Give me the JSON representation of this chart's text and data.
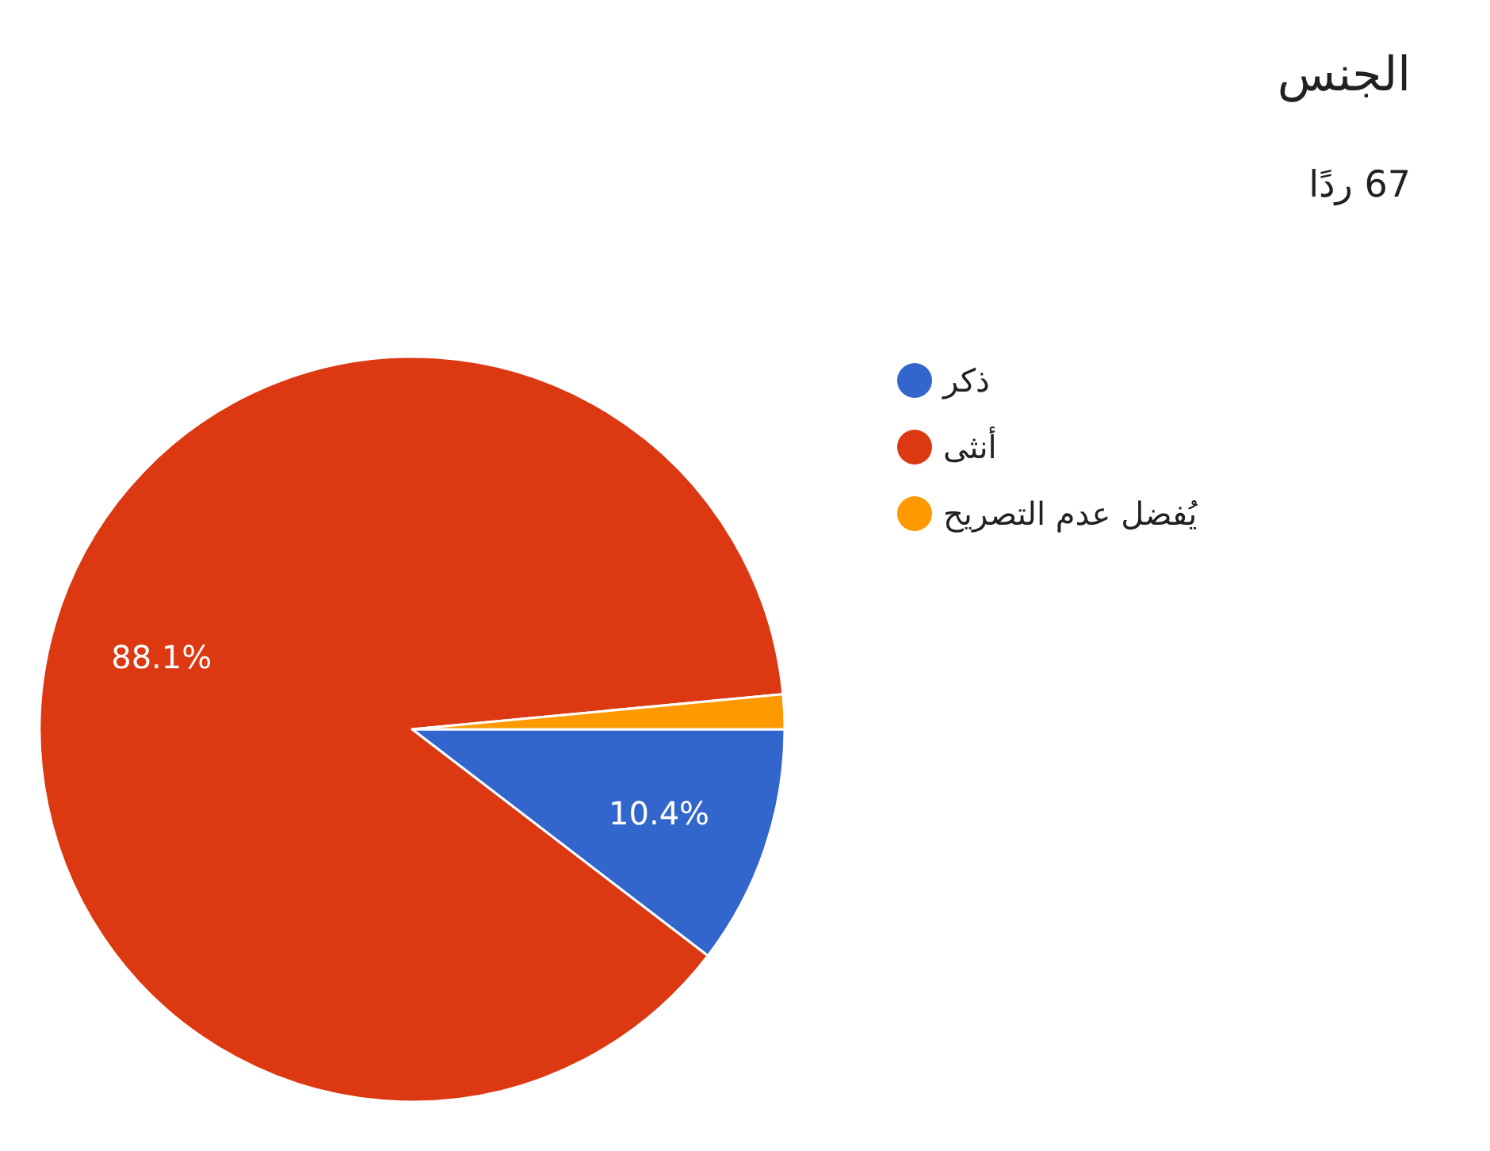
{
  "chart_data": {
    "type": "pie",
    "title": "الجنس",
    "subtitle": "67 ردًا",
    "categories": [
      "ذكر",
      "أنثى",
      "يُفضل عدم التصريح"
    ],
    "values": [
      10.4,
      88.1,
      1.5
    ],
    "value_labels": [
      "10.4%",
      "88.1%",
      null
    ],
    "colors": [
      "#3366cc",
      "#dc3912",
      "#ff9900"
    ],
    "legend": "right"
  }
}
